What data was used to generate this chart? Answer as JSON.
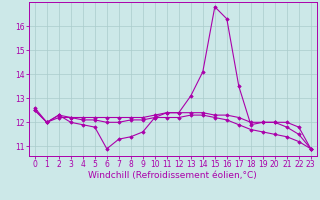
{
  "title": "",
  "xlabel": "Windchill (Refroidissement éolien,°C)",
  "ylabel": "",
  "bg_color": "#cce8e8",
  "line_color": "#aa00aa",
  "grid_color": "#aacccc",
  "x": [
    0,
    1,
    2,
    3,
    4,
    5,
    6,
    7,
    8,
    9,
    10,
    11,
    12,
    13,
    14,
    15,
    16,
    17,
    18,
    19,
    20,
    21,
    22,
    23
  ],
  "line1": [
    12.6,
    12.0,
    12.3,
    12.0,
    11.9,
    11.8,
    10.9,
    11.3,
    11.4,
    11.6,
    12.2,
    12.4,
    12.4,
    13.1,
    14.1,
    16.8,
    16.3,
    13.5,
    11.9,
    12.0,
    12.0,
    11.8,
    11.5,
    10.9
  ],
  "line2": [
    12.5,
    12.0,
    12.3,
    12.2,
    12.2,
    12.2,
    12.2,
    12.2,
    12.2,
    12.2,
    12.3,
    12.4,
    12.4,
    12.4,
    12.4,
    12.3,
    12.3,
    12.2,
    12.0,
    12.0,
    12.0,
    12.0,
    11.8,
    10.9
  ],
  "line3": [
    12.5,
    12.0,
    12.2,
    12.2,
    12.1,
    12.1,
    12.0,
    12.0,
    12.1,
    12.1,
    12.2,
    12.2,
    12.2,
    12.3,
    12.3,
    12.2,
    12.1,
    11.9,
    11.7,
    11.6,
    11.5,
    11.4,
    11.2,
    10.9
  ],
  "ylim": [
    10.6,
    17.0
  ],
  "yticks": [
    11,
    12,
    13,
    14,
    15,
    16
  ],
  "xticks": [
    0,
    1,
    2,
    3,
    4,
    5,
    6,
    7,
    8,
    9,
    10,
    11,
    12,
    13,
    14,
    15,
    16,
    17,
    18,
    19,
    20,
    21,
    22,
    23
  ],
  "tick_fontsize": 5.5,
  "xlabel_fontsize": 6.5,
  "marker": "D",
  "markersize": 1.8,
  "linewidth": 0.8
}
